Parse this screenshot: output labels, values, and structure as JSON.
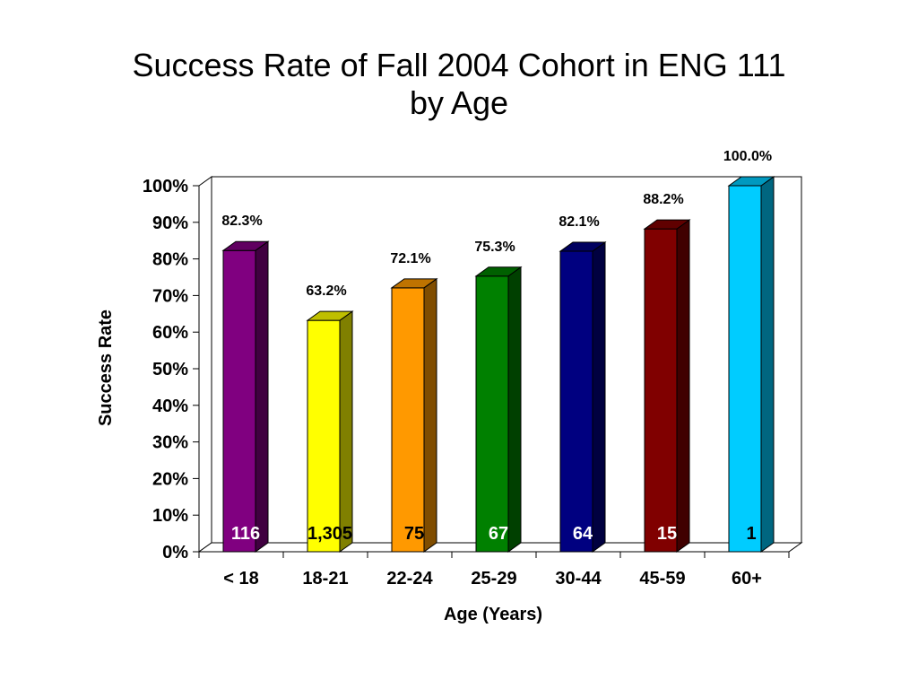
{
  "chart_data": {
    "type": "bar",
    "title_lines": [
      "Success Rate of Fall 2004 Cohort in ENG 111",
      "by Age"
    ],
    "xlabel": "Age (Years)",
    "ylabel": "Success Rate",
    "categories": [
      "< 18",
      "18-21",
      "22-24",
      "25-29",
      "30-44",
      "45-59",
      "60+"
    ],
    "values": [
      82.3,
      63.2,
      72.1,
      75.3,
      82.1,
      88.2,
      100.0
    ],
    "value_labels": [
      "82.3%",
      "63.2%",
      "72.1%",
      "75.3%",
      "82.1%",
      "88.2%",
      "100.0%"
    ],
    "counts": [
      "116",
      "1,305",
      "75",
      "67",
      "64",
      "15",
      "1"
    ],
    "ylim": [
      0,
      100
    ],
    "yticks": [
      "0%",
      "10%",
      "20%",
      "30%",
      "40%",
      "50%",
      "60%",
      "70%",
      "80%",
      "90%",
      "100%"
    ],
    "grid": false,
    "legend": "none",
    "bar_colors": [
      "#800080",
      "#FFFF00",
      "#FF9900",
      "#008000",
      "#000080",
      "#800000",
      "#00CCFF"
    ],
    "count_label_colors": [
      "#FFFFFF",
      "#000000",
      "#000000",
      "#FFFFFF",
      "#FFFFFF",
      "#FFFFFF",
      "#000000"
    ]
  }
}
